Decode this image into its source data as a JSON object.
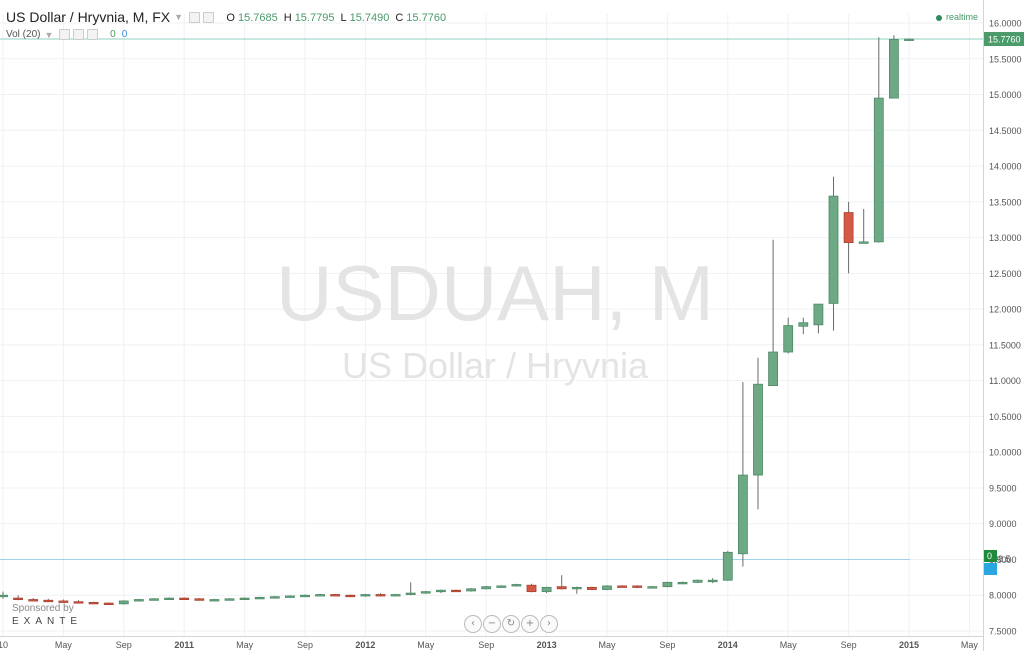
{
  "header": {
    "symbol_title": "US Dollar / Hryvnia, M, FX",
    "ohlc": [
      {
        "key": "O",
        "value": "15.7685"
      },
      {
        "key": "H",
        "value": "15.7795"
      },
      {
        "key": "L",
        "value": "15.7490"
      },
      {
        "key": "C",
        "value": "15.7760"
      }
    ],
    "volume_label": "Vol (20)",
    "volume_values": [
      "0",
      "0"
    ],
    "realtime_label": "realtime"
  },
  "watermark": {
    "line1": "USDUAH, M",
    "line2": "US Dollar / Hryvnia"
  },
  "sponsor": {
    "label": "Sponsored by",
    "name": "EXANTE"
  },
  "zoom_controls": [
    {
      "name": "scroll-left",
      "icon": "chevron-left-icon",
      "glyph": "‹"
    },
    {
      "name": "zoom-out",
      "icon": "minus-icon",
      "glyph": "−"
    },
    {
      "name": "reset",
      "icon": "reset-icon",
      "glyph": "↻"
    },
    {
      "name": "zoom-in",
      "icon": "plus-icon",
      "glyph": "+"
    },
    {
      "name": "scroll-right",
      "icon": "chevron-right-icon",
      "glyph": "›"
    }
  ],
  "chart_data": {
    "type": "candlestick",
    "symbol": "USDUAH",
    "interval": "M",
    "y_axis": {
      "min": 7.4,
      "max": 16.15,
      "ticks": [
        "16.0000",
        "15.5000",
        "15.0000",
        "14.5000",
        "14.0000",
        "13.5000",
        "13.0000",
        "12.5000",
        "12.0000",
        "11.5000",
        "11.0000",
        "10.5000",
        "10.0000",
        "9.5000",
        "9.0000",
        "8.5000",
        "8.0000",
        "7.5000"
      ],
      "last_price_label": "15.7760",
      "ma_label": "8.5"
    },
    "x_axis": {
      "labels": [
        {
          "label": "10",
          "date": "2010-01"
        },
        {
          "label": "May",
          "date": "2010-05"
        },
        {
          "label": "Sep",
          "date": "2010-09"
        },
        {
          "label": "2011",
          "date": "2011-01"
        },
        {
          "label": "May",
          "date": "2011-05"
        },
        {
          "label": "Sep",
          "date": "2011-09"
        },
        {
          "label": "2012",
          "date": "2012-01"
        },
        {
          "label": "May",
          "date": "2012-05"
        },
        {
          "label": "Sep",
          "date": "2012-09"
        },
        {
          "label": "2013",
          "date": "2013-01"
        },
        {
          "label": "May",
          "date": "2013-05"
        },
        {
          "label": "Sep",
          "date": "2013-09"
        },
        {
          "label": "2014",
          "date": "2014-01"
        },
        {
          "label": "May",
          "date": "2014-05"
        },
        {
          "label": "Sep",
          "date": "2014-09"
        },
        {
          "label": "2015",
          "date": "2015-01"
        },
        {
          "label": "May",
          "date": "2015-05"
        }
      ]
    },
    "horizontal_lines": [
      {
        "name": "last-price-line",
        "value": 15.776,
        "color": "#8fd0c2"
      },
      {
        "name": "moving-average-line",
        "value": 8.5,
        "color": "#9fd3ec"
      }
    ],
    "colors": {
      "up": "#6ea985",
      "down": "#d45a46",
      "grid": "#eef1f4",
      "axis_text": "#555555",
      "last_price_bg": "#4a9a6a",
      "ma_bg": "#2aa7e0"
    },
    "candles": [
      {
        "date": "2010-01",
        "o": 7.98,
        "h": 8.05,
        "l": 7.95,
        "c": 8.0
      },
      {
        "date": "2010-02",
        "o": 7.96,
        "h": 8.0,
        "l": 7.93,
        "c": 7.94
      },
      {
        "date": "2010-03",
        "o": 7.94,
        "h": 7.96,
        "l": 7.92,
        "c": 7.93
      },
      {
        "date": "2010-04",
        "o": 7.93,
        "h": 7.95,
        "l": 7.91,
        "c": 7.92
      },
      {
        "date": "2010-05",
        "o": 7.92,
        "h": 7.94,
        "l": 7.9,
        "c": 7.91
      },
      {
        "date": "2010-06",
        "o": 7.91,
        "h": 7.93,
        "l": 7.89,
        "c": 7.9
      },
      {
        "date": "2010-07",
        "o": 7.9,
        "h": 7.91,
        "l": 7.88,
        "c": 7.89
      },
      {
        "date": "2010-08",
        "o": 7.89,
        "h": 7.9,
        "l": 7.87,
        "c": 7.88
      },
      {
        "date": "2010-09",
        "o": 7.88,
        "h": 7.93,
        "l": 7.87,
        "c": 7.92
      },
      {
        "date": "2010-10",
        "o": 7.92,
        "h": 7.95,
        "l": 7.91,
        "c": 7.94
      },
      {
        "date": "2010-11",
        "o": 7.94,
        "h": 7.96,
        "l": 7.93,
        "c": 7.95
      },
      {
        "date": "2010-12",
        "o": 7.95,
        "h": 7.97,
        "l": 7.94,
        "c": 7.96
      },
      {
        "date": "2011-01",
        "o": 7.96,
        "h": 7.97,
        "l": 7.94,
        "c": 7.95
      },
      {
        "date": "2011-02",
        "o": 7.95,
        "h": 7.96,
        "l": 7.93,
        "c": 7.94
      },
      {
        "date": "2011-03",
        "o": 7.94,
        "h": 7.95,
        "l": 7.93,
        "c": 7.94
      },
      {
        "date": "2011-04",
        "o": 7.94,
        "h": 7.96,
        "l": 7.93,
        "c": 7.95
      },
      {
        "date": "2011-05",
        "o": 7.95,
        "h": 7.97,
        "l": 7.94,
        "c": 7.96
      },
      {
        "date": "2011-06",
        "o": 7.96,
        "h": 7.98,
        "l": 7.95,
        "c": 7.97
      },
      {
        "date": "2011-07",
        "o": 7.97,
        "h": 7.99,
        "l": 7.96,
        "c": 7.98
      },
      {
        "date": "2011-08",
        "o": 7.98,
        "h": 8.0,
        "l": 7.97,
        "c": 7.99
      },
      {
        "date": "2011-09",
        "o": 7.99,
        "h": 8.01,
        "l": 7.98,
        "c": 8.0
      },
      {
        "date": "2011-10",
        "o": 8.0,
        "h": 8.02,
        "l": 7.99,
        "c": 8.01
      },
      {
        "date": "2011-11",
        "o": 8.01,
        "h": 8.02,
        "l": 7.99,
        "c": 8.0
      },
      {
        "date": "2011-12",
        "o": 8.0,
        "h": 8.01,
        "l": 7.98,
        "c": 7.99
      },
      {
        "date": "2012-01",
        "o": 7.99,
        "h": 8.02,
        "l": 7.98,
        "c": 8.01
      },
      {
        "date": "2012-02",
        "o": 8.01,
        "h": 8.03,
        "l": 7.99,
        "c": 8.0
      },
      {
        "date": "2012-03",
        "o": 8.0,
        "h": 8.02,
        "l": 7.99,
        "c": 8.01
      },
      {
        "date": "2012-04",
        "o": 8.01,
        "h": 8.18,
        "l": 8.0,
        "c": 8.03
      },
      {
        "date": "2012-05",
        "o": 8.03,
        "h": 8.06,
        "l": 8.02,
        "c": 8.05
      },
      {
        "date": "2012-06",
        "o": 8.05,
        "h": 8.08,
        "l": 8.03,
        "c": 8.07
      },
      {
        "date": "2012-07",
        "o": 8.07,
        "h": 8.08,
        "l": 8.05,
        "c": 8.06
      },
      {
        "date": "2012-08",
        "o": 8.06,
        "h": 8.1,
        "l": 8.05,
        "c": 8.09
      },
      {
        "date": "2012-09",
        "o": 8.09,
        "h": 8.13,
        "l": 8.08,
        "c": 8.12
      },
      {
        "date": "2012-10",
        "o": 8.12,
        "h": 8.14,
        "l": 8.11,
        "c": 8.13
      },
      {
        "date": "2012-11",
        "o": 8.13,
        "h": 8.16,
        "l": 8.12,
        "c": 8.15
      },
      {
        "date": "2012-12",
        "o": 8.14,
        "h": 8.16,
        "l": 8.04,
        "c": 8.05
      },
      {
        "date": "2013-01",
        "o": 8.05,
        "h": 8.12,
        "l": 8.03,
        "c": 8.11
      },
      {
        "date": "2013-02",
        "o": 8.12,
        "h": 8.28,
        "l": 8.08,
        "c": 8.09
      },
      {
        "date": "2013-03",
        "o": 8.09,
        "h": 8.12,
        "l": 8.02,
        "c": 8.11
      },
      {
        "date": "2013-04",
        "o": 8.11,
        "h": 8.12,
        "l": 8.07,
        "c": 8.08
      },
      {
        "date": "2013-05",
        "o": 8.08,
        "h": 8.14,
        "l": 8.07,
        "c": 8.13
      },
      {
        "date": "2013-06",
        "o": 8.13,
        "h": 8.14,
        "l": 8.11,
        "c": 8.12
      },
      {
        "date": "2013-07",
        "o": 8.13,
        "h": 8.14,
        "l": 8.1,
        "c": 8.11
      },
      {
        "date": "2013-08",
        "o": 8.11,
        "h": 8.13,
        "l": 8.1,
        "c": 8.12
      },
      {
        "date": "2013-09",
        "o": 8.12,
        "h": 8.19,
        "l": 8.11,
        "c": 8.18
      },
      {
        "date": "2013-10",
        "o": 8.18,
        "h": 8.19,
        "l": 8.17,
        "c": 8.18
      },
      {
        "date": "2013-11",
        "o": 8.18,
        "h": 8.22,
        "l": 8.17,
        "c": 8.21
      },
      {
        "date": "2013-12",
        "o": 8.21,
        "h": 8.24,
        "l": 8.17,
        "c": 8.21
      },
      {
        "date": "2014-01",
        "o": 8.21,
        "h": 8.62,
        "l": 8.2,
        "c": 8.6
      },
      {
        "date": "2014-02",
        "o": 8.58,
        "h": 10.98,
        "l": 8.4,
        "c": 9.68
      },
      {
        "date": "2014-03",
        "o": 9.68,
        "h": 11.32,
        "l": 9.2,
        "c": 10.95
      },
      {
        "date": "2014-04",
        "o": 10.93,
        "h": 12.97,
        "l": 10.93,
        "c": 11.4
      },
      {
        "date": "2014-05",
        "o": 11.4,
        "h": 11.88,
        "l": 11.38,
        "c": 11.77
      },
      {
        "date": "2014-06",
        "o": 11.76,
        "h": 11.88,
        "l": 11.65,
        "c": 11.81
      },
      {
        "date": "2014-07",
        "o": 11.78,
        "h": 12.07,
        "l": 11.66,
        "c": 12.07
      },
      {
        "date": "2014-08",
        "o": 12.08,
        "h": 13.85,
        "l": 11.7,
        "c": 13.58
      },
      {
        "date": "2014-09",
        "o": 13.35,
        "h": 13.5,
        "l": 12.5,
        "c": 12.93
      },
      {
        "date": "2014-10",
        "o": 12.93,
        "h": 13.4,
        "l": 12.92,
        "c": 12.94
      },
      {
        "date": "2014-11",
        "o": 12.94,
        "h": 15.8,
        "l": 12.93,
        "c": 14.95
      },
      {
        "date": "2014-12",
        "o": 14.95,
        "h": 15.83,
        "l": 14.95,
        "c": 15.77
      },
      {
        "date": "2015-01",
        "o": 15.7685,
        "h": 15.7795,
        "l": 15.749,
        "c": 15.776
      }
    ]
  }
}
